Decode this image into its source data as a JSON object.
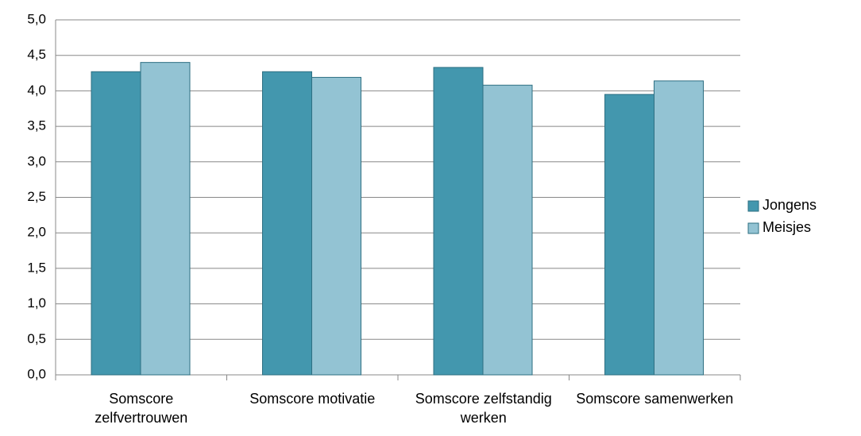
{
  "chart_data": {
    "type": "bar",
    "categories": [
      "Somscore zelfvertrouwen",
      "Somscore motivatie",
      "Somscore zelfstandig werken",
      "Somscore samenwerken"
    ],
    "series": [
      {
        "name": "Jongens",
        "color": "#4397ae",
        "values": [
          4.27,
          4.27,
          4.33,
          3.95
        ]
      },
      {
        "name": "Meisjes",
        "color": "#93c3d3",
        "values": [
          4.4,
          4.19,
          4.08,
          4.14
        ]
      }
    ],
    "ylim": [
      0,
      5
    ],
    "yticks": [
      {
        "value": 0,
        "label": "0,0"
      },
      {
        "value": 0.5,
        "label": "0,5"
      },
      {
        "value": 1,
        "label": "1,0"
      },
      {
        "value": 1.5,
        "label": "1,5"
      },
      {
        "value": 2,
        "label": "2,0"
      },
      {
        "value": 2.5,
        "label": "2,5"
      },
      {
        "value": 3,
        "label": "3,0"
      },
      {
        "value": 3.5,
        "label": "3,5"
      },
      {
        "value": 4,
        "label": "4,0"
      },
      {
        "value": 4.5,
        "label": "4,5"
      },
      {
        "value": 5,
        "label": "5,0"
      }
    ],
    "grid": true,
    "legend": "right"
  }
}
